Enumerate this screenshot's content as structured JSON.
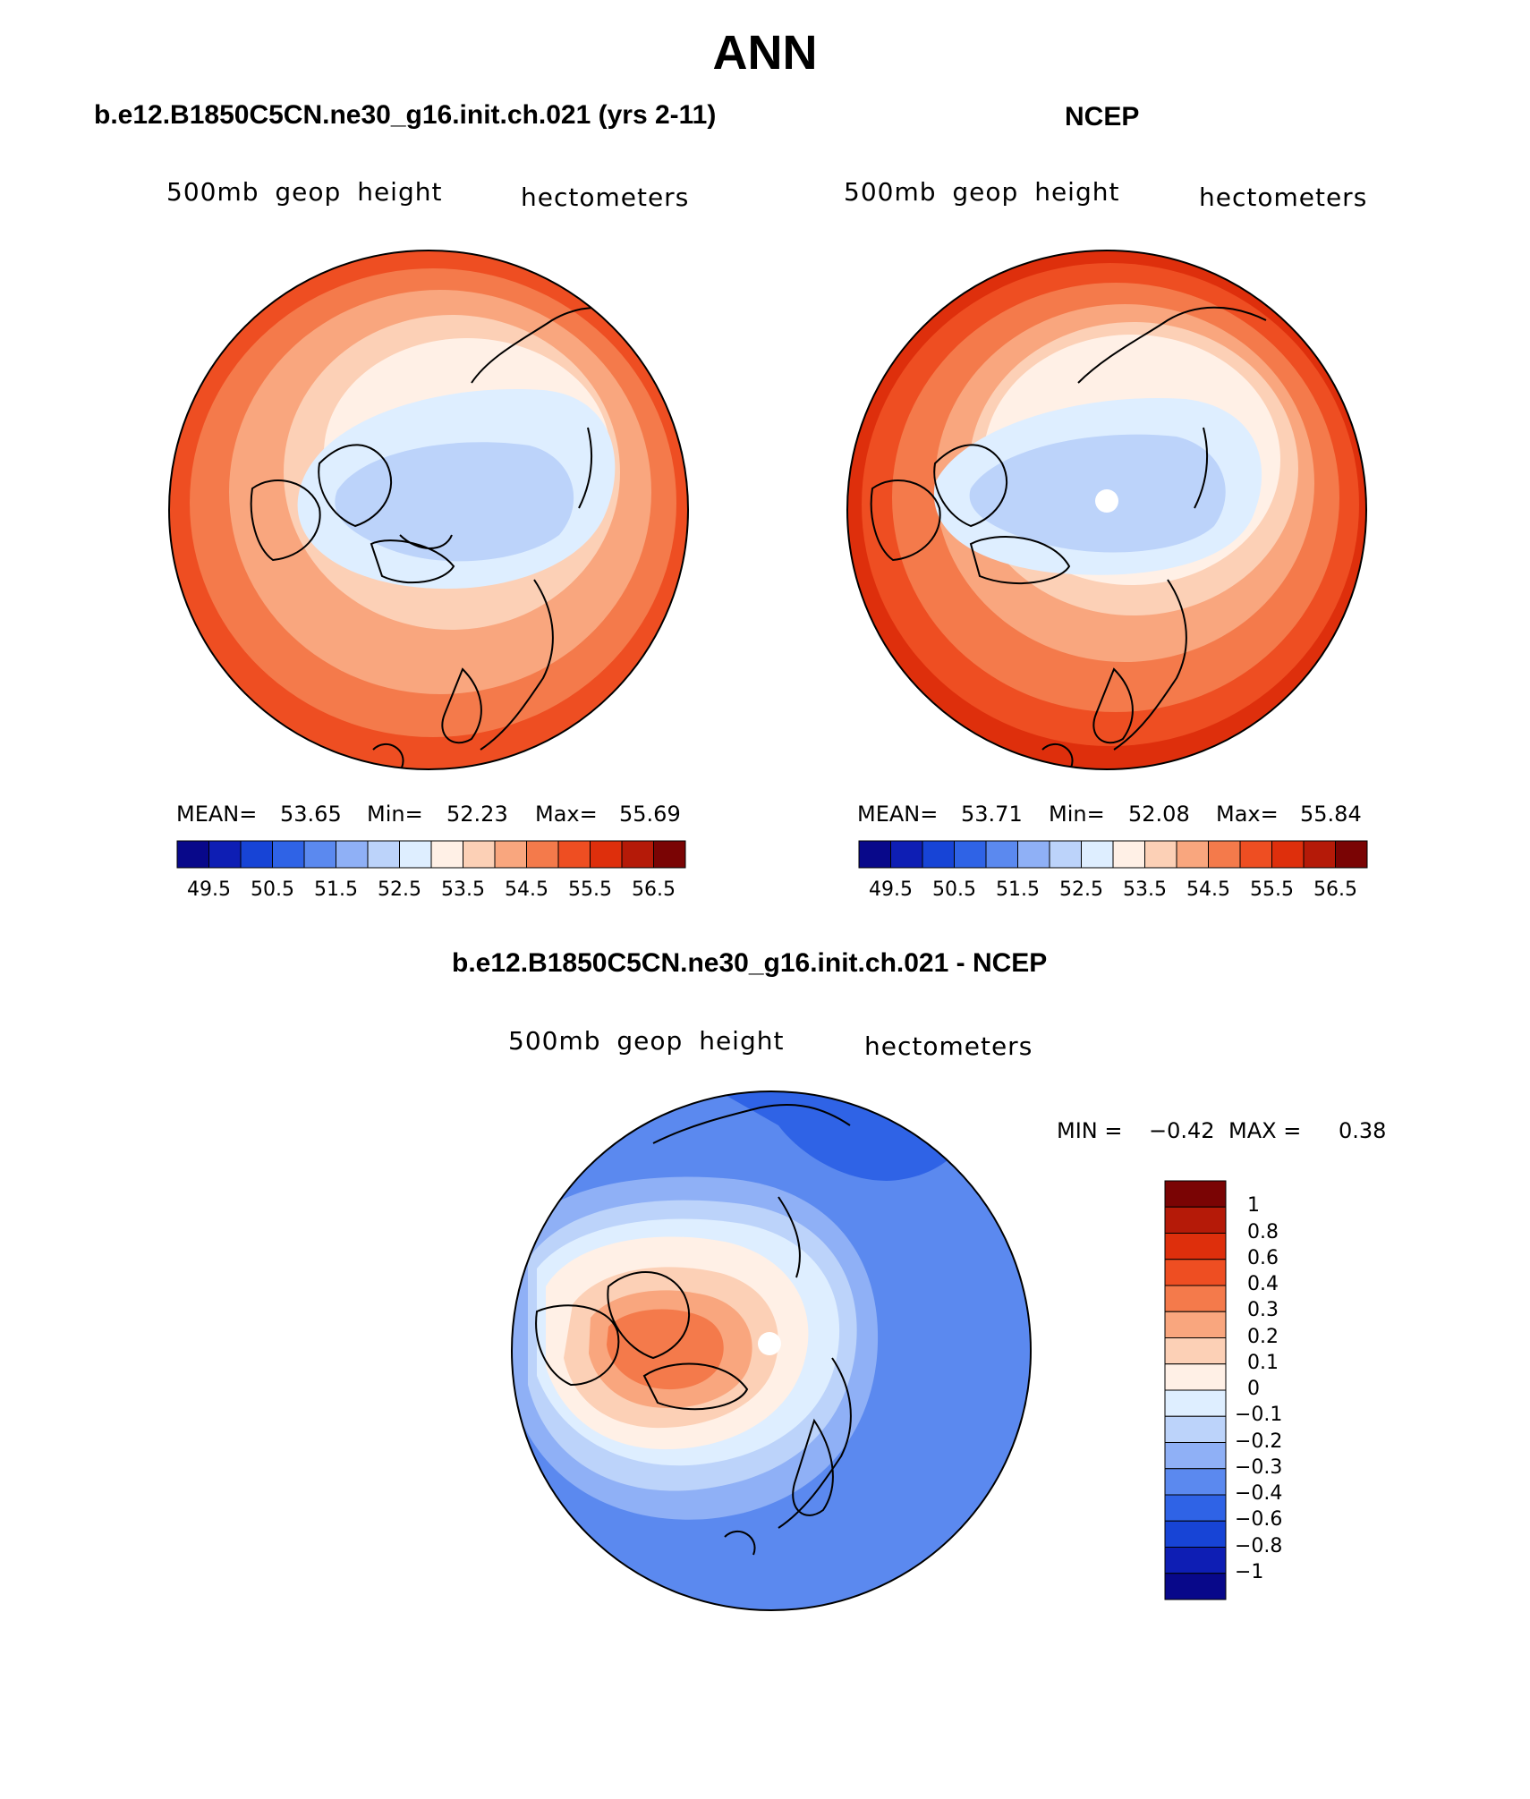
{
  "main_title": "ANN",
  "colors": {
    "palette": [
      "#08088a",
      "#0e1eb4",
      "#1744d6",
      "#2f63e6",
      "#5b89ef",
      "#8fb0f6",
      "#bcd3fa",
      "#deeeff",
      "#fff0e6",
      "#fcd0b6",
      "#f9a67e",
      "#f47a4b",
      "#ee4e22",
      "#de2f0c",
      "#b51a08",
      "#7a0404"
    ],
    "coast": "#000000"
  },
  "panels": {
    "model": {
      "title": "b.e12.B1850C5CN.ne30_g16.init.ch.021 (yrs 2-11)",
      "variable": "500mb geop height",
      "units": "hectometers",
      "mean_label": "MEAN=",
      "mean": "53.65",
      "min_label": "Min=",
      "min": "52.23",
      "max_label": "Max=",
      "max": "55.69"
    },
    "obs": {
      "title": "NCEP",
      "variable": "500mb geop height",
      "units": "hectometers",
      "mean_label": "MEAN=",
      "mean": "53.71",
      "min_label": "Min=",
      "min": "52.08",
      "max_label": "Max=",
      "max": "55.84"
    },
    "diff": {
      "title": "b.e12.B1850C5CN.ne30_g16.init.ch.021 - NCEP",
      "variable": "500mb geop height",
      "units": "hectometers",
      "min_label": "MIN =",
      "min": "−0.42",
      "max_label": "MAX =",
      "max": "0.38"
    }
  },
  "chart_data": [
    {
      "type": "contour-map",
      "title": "b.e12.B1850C5CN.ne30_g16.init.ch.021 (yrs 2-11)",
      "projection": "north-polar-stereographic",
      "field": "500mb geop height",
      "units": "hectometers",
      "mean": 53.65,
      "min": 52.23,
      "max": 55.69,
      "contour_levels": [
        49.5,
        50,
        50.5,
        51,
        51.5,
        52,
        52.5,
        53,
        53.5,
        54,
        54.5,
        55,
        55.5,
        56,
        56.5
      ],
      "colorbar_tick_labels": [
        "49.5",
        "50.5",
        "51.5",
        "52.5",
        "53.5",
        "54.5",
        "55.5",
        "56.5"
      ]
    },
    {
      "type": "contour-map",
      "title": "NCEP",
      "projection": "north-polar-stereographic",
      "field": "500mb geop height",
      "units": "hectometers",
      "mean": 53.71,
      "min": 52.08,
      "max": 55.84,
      "contour_levels": [
        49.5,
        50,
        50.5,
        51,
        51.5,
        52,
        52.5,
        53,
        53.5,
        54,
        54.5,
        55,
        55.5,
        56,
        56.5
      ],
      "colorbar_tick_labels": [
        "49.5",
        "50.5",
        "51.5",
        "52.5",
        "53.5",
        "54.5",
        "55.5",
        "56.5"
      ]
    },
    {
      "type": "contour-map",
      "title": "b.e12.B1850C5CN.ne30_g16.init.ch.021 - NCEP",
      "projection": "north-polar-stereographic",
      "field": "500mb geop height",
      "units": "hectometers",
      "min": -0.42,
      "max": 0.38,
      "contour_levels": [
        -1,
        -0.8,
        -0.6,
        -0.4,
        -0.3,
        -0.2,
        -0.1,
        0,
        0.1,
        0.2,
        0.3,
        0.4,
        0.6,
        0.8,
        1
      ],
      "colorbar_tick_labels": [
        "1",
        "0.8",
        "0.6",
        "0.4",
        "0.3",
        "0.2",
        "0.1",
        "0",
        "−0.1",
        "−0.2",
        "−0.3",
        "−0.4",
        "−0.6",
        "−0.8",
        "−1"
      ]
    }
  ]
}
